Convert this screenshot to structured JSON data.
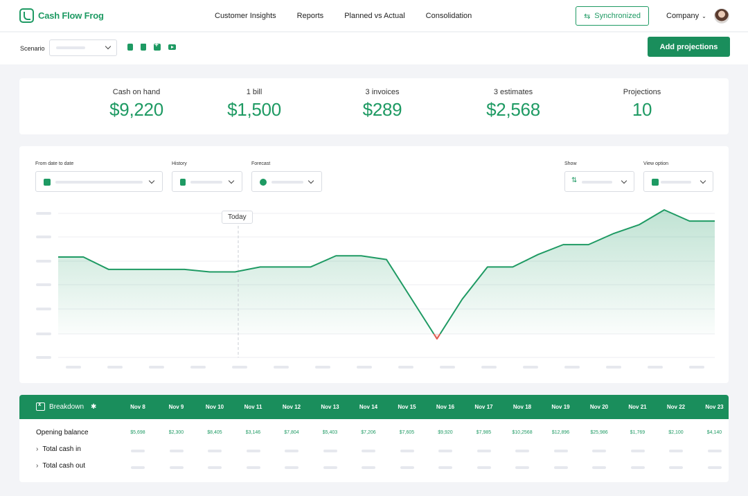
{
  "app": {
    "logo_text": "Cash Flow Frog"
  },
  "nav": {
    "items": [
      "Customer Insights",
      "Reports",
      "Planned vs Actual",
      "Consolidation"
    ],
    "sync_label": "Synchronized",
    "company_label": "Company"
  },
  "scenario": {
    "label": "Scenario",
    "add_button": "Add projections"
  },
  "stats": [
    {
      "label": "Cash on hand",
      "value": "$9,220"
    },
    {
      "label": "1 bill",
      "value": "$1,500"
    },
    {
      "label": "3 invoices",
      "value": "$289"
    },
    {
      "label": "3 estimates",
      "value": "$2,568"
    },
    {
      "label": "Projections",
      "value": "10"
    }
  ],
  "filters": {
    "date_label": "From date to date",
    "history_label": "History",
    "forecast_label": "Forecast",
    "show_label": "Show",
    "view_label": "View option"
  },
  "chart": {
    "today_label": "Today",
    "accent": "#1e9a63",
    "negative": "#e05a4f"
  },
  "chart_data": {
    "type": "area",
    "title": "",
    "xlabel": "",
    "ylabel": "",
    "grid": true,
    "marker_label": "Today",
    "series": [
      {
        "values": [
          62,
          62,
          52,
          52,
          52,
          52,
          50,
          50,
          54,
          54,
          54,
          63,
          63,
          60,
          28,
          -4,
          28,
          54,
          54,
          64,
          72,
          72,
          81,
          88,
          100,
          91,
          91
        ]
      }
    ]
  },
  "breakdown": {
    "title": "Breakdown",
    "dates": [
      "Nov 8",
      "Nov 9",
      "Nov 10",
      "Nov 11",
      "Nov 12",
      "Nov 13",
      "Nov 14",
      "Nov 15",
      "Nov 16",
      "Nov 17",
      "Nov 18",
      "Nov 19",
      "Nov 20",
      "Nov 21",
      "Nov 22",
      "Nov 23"
    ],
    "rows": {
      "opening_label": "Opening balance",
      "opening_values": [
        "$5,698",
        "$2,300",
        "$8,405",
        "$3,146",
        "$7,804",
        "$5,403",
        "$7,206",
        "$7,605",
        "$9,920",
        "$7,985",
        "$10,2568",
        "$12,896",
        "$25,986",
        "$1,769",
        "$2,100",
        "$4,140"
      ],
      "cash_in_label": "Total cash in",
      "cash_out_label": "Total cash out"
    }
  }
}
